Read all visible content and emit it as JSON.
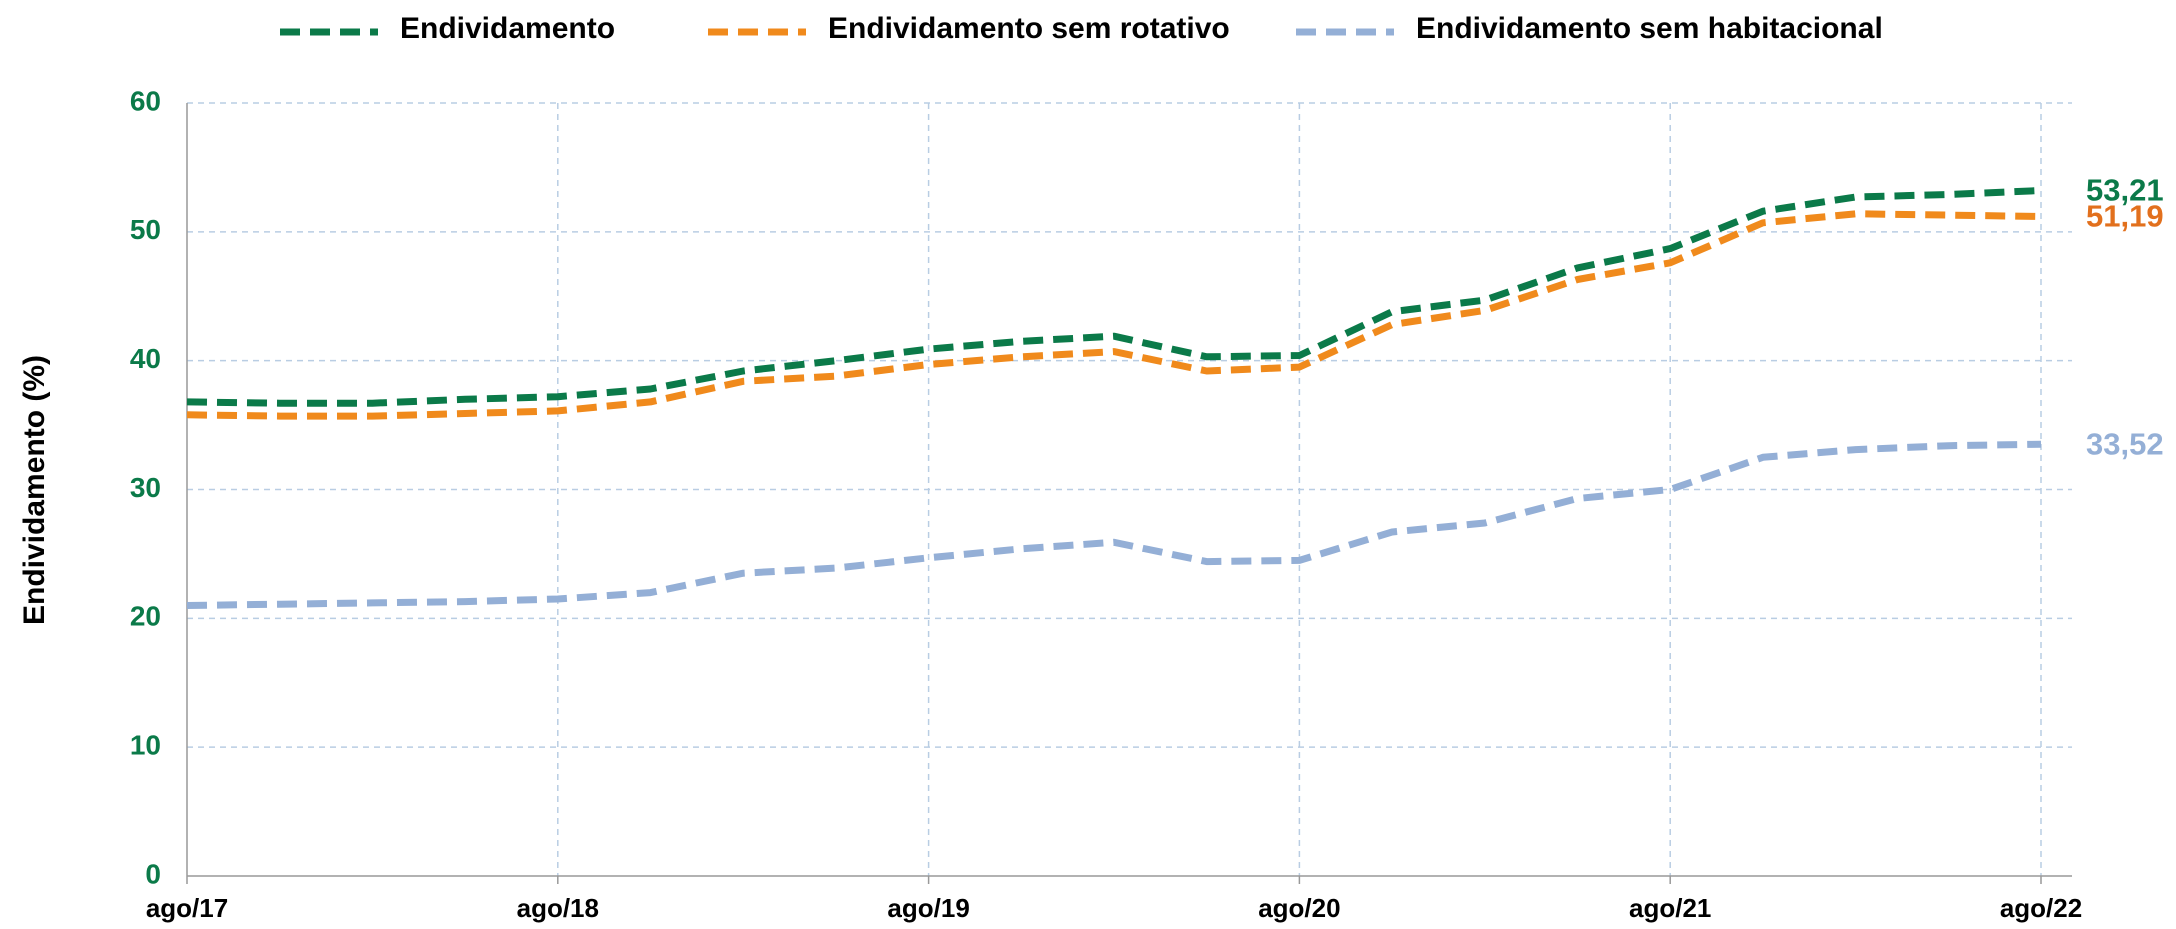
{
  "chart_data": {
    "type": "line",
    "y_axis_label": "Endividamento (%)",
    "categories": [
      "ago/17",
      null,
      null,
      null,
      "ago/18",
      null,
      null,
      null,
      "ago/19",
      null,
      null,
      null,
      "ago/20",
      null,
      null,
      null,
      "ago/21",
      null,
      null,
      null,
      "ago/22"
    ],
    "series": [
      {
        "name": "Endividamento",
        "color": "#0b7a49",
        "label_color": "#0b7a49",
        "values": [
          36.8,
          36.7,
          36.7,
          37.0,
          37.2,
          37.8,
          39.2,
          40.0,
          40.9,
          41.5,
          41.9,
          40.3,
          40.4,
          43.8,
          44.7,
          47.2,
          48.7,
          51.6,
          52.7,
          52.9,
          53.21
        ],
        "value_labels": [
          null,
          null,
          null,
          null,
          null,
          null,
          null,
          null,
          null,
          null,
          null,
          null,
          null,
          null,
          null,
          null,
          null,
          null,
          null,
          null,
          "53,21"
        ]
      },
      {
        "name": "Endividamento sem rotativo",
        "color": "#f08a1c",
        "label_color": "#e2701d",
        "values": [
          35.8,
          35.7,
          35.7,
          35.9,
          36.1,
          36.8,
          38.4,
          38.8,
          39.7,
          40.3,
          40.7,
          39.2,
          39.5,
          42.8,
          43.9,
          46.3,
          47.6,
          50.7,
          51.4,
          51.3,
          51.19
        ],
        "value_labels": [
          null,
          null,
          null,
          null,
          null,
          null,
          null,
          null,
          null,
          null,
          null,
          null,
          null,
          null,
          null,
          null,
          null,
          null,
          null,
          null,
          "51,19"
        ]
      },
      {
        "name": "Endividamento sem habitacional",
        "color": "#94afd6",
        "label_color": "#94afd6",
        "values": [
          21.0,
          21.1,
          21.2,
          21.3,
          21.5,
          22.0,
          23.5,
          23.9,
          24.7,
          25.4,
          25.9,
          24.4,
          24.5,
          26.7,
          27.4,
          29.3,
          30.0,
          32.5,
          33.1,
          33.4,
          33.52
        ],
        "value_labels": [
          null,
          null,
          null,
          null,
          null,
          null,
          null,
          null,
          null,
          null,
          null,
          null,
          null,
          null,
          null,
          null,
          null,
          null,
          null,
          null,
          "33,52"
        ]
      }
    ],
    "ylim": [
      0,
      60
    ],
    "yticks": [
      0,
      10,
      20,
      30,
      40,
      50,
      60
    ],
    "grid": true,
    "legend": "top"
  }
}
